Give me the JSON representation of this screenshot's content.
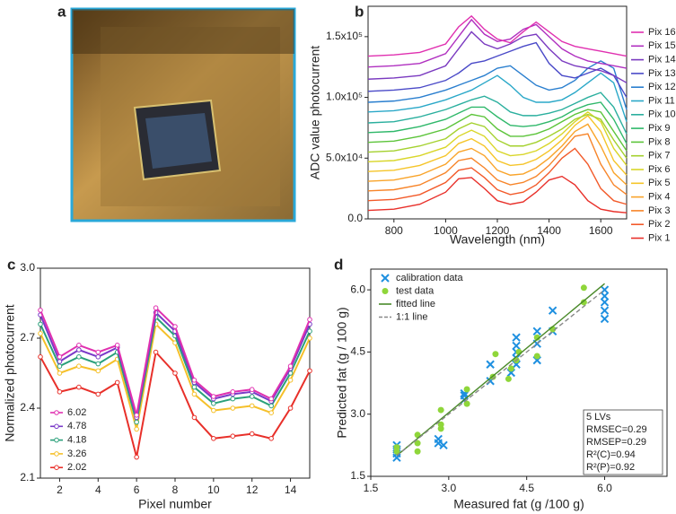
{
  "photo_panel": {
    "panel_label": "a"
  },
  "chart_data": [
    {
      "type": "line",
      "panel_label": "b",
      "x_label": "Wavelength (nm)",
      "y_label": "ADC value photocurrent",
      "xlim": [
        700,
        1700
      ],
      "xticks": [
        800,
        1000,
        1200,
        1400,
        1600
      ],
      "ylim": [
        0,
        175000
      ],
      "yticks": [
        {
          "value": 0,
          "label": "0.0"
        },
        {
          "value": 50000,
          "label": "5.0x10⁴"
        },
        {
          "value": 100000,
          "label": "1.0x10⁵"
        },
        {
          "value": 150000,
          "label": "1.5x10⁵"
        }
      ],
      "legend": "right",
      "grid": false,
      "markers": false,
      "x": [
        700,
        800,
        900,
        1000,
        1050,
        1100,
        1150,
        1200,
        1250,
        1300,
        1350,
        1400,
        1450,
        1500,
        1550,
        1600,
        1650,
        1700
      ],
      "series": [
        {
          "name": "Pix 1",
          "color": "#e8302a",
          "values": [
            7000,
            8000,
            12000,
            22000,
            33000,
            34000,
            25000,
            15000,
            12000,
            14000,
            22000,
            32000,
            35000,
            28000,
            15000,
            8000,
            6000,
            5000
          ]
        },
        {
          "name": "Pix 2",
          "color": "#f25a2a",
          "values": [
            15000,
            16000,
            20000,
            30000,
            40000,
            42000,
            34000,
            24000,
            20000,
            22000,
            28000,
            38000,
            50000,
            58000,
            45000,
            25000,
            15000,
            12000
          ]
        },
        {
          "name": "Pix 3",
          "color": "#f7852a",
          "values": [
            23000,
            24000,
            28000,
            38000,
            48000,
            50000,
            42000,
            32000,
            28000,
            30000,
            35000,
            44000,
            56000,
            68000,
            70000,
            45000,
            28000,
            20000
          ]
        },
        {
          "name": "Pix 4",
          "color": "#f9a42a",
          "values": [
            31000,
            32000,
            36000,
            45000,
            55000,
            58000,
            52000,
            40000,
            36000,
            37000,
            42000,
            50000,
            60000,
            72000,
            78000,
            60000,
            38000,
            28000
          ]
        },
        {
          "name": "Pix 5",
          "color": "#f5c52a",
          "values": [
            39000,
            40000,
            44000,
            52000,
            62000,
            66000,
            60000,
            48000,
            44000,
            45000,
            49000,
            56000,
            65000,
            77000,
            85000,
            72000,
            48000,
            36000
          ]
        },
        {
          "name": "Pix 6",
          "color": "#d9d62a",
          "values": [
            47000,
            48000,
            52000,
            59000,
            68000,
            73000,
            68000,
            56000,
            52000,
            53000,
            56000,
            62000,
            70000,
            80000,
            88000,
            80000,
            58000,
            44000
          ]
        },
        {
          "name": "Pix 7",
          "color": "#a4d12e",
          "values": [
            55000,
            56000,
            60000,
            66000,
            74000,
            79000,
            76000,
            65000,
            60000,
            60000,
            63000,
            68000,
            74000,
            82000,
            86000,
            82000,
            65000,
            50000
          ]
        },
        {
          "name": "Pix 8",
          "color": "#5cc43a",
          "values": [
            63000,
            64000,
            68000,
            74000,
            80000,
            86000,
            84000,
            74000,
            68000,
            68000,
            70000,
            74000,
            80000,
            86000,
            90000,
            88000,
            72000,
            56000
          ]
        },
        {
          "name": "Pix 9",
          "color": "#2fb86a",
          "values": [
            71000,
            72000,
            76000,
            82000,
            87000,
            92000,
            92000,
            84000,
            77000,
            76000,
            77000,
            80000,
            84000,
            90000,
            94000,
            96000,
            82000,
            62000
          ]
        },
        {
          "name": "Pix 10",
          "color": "#2aaf9e",
          "values": [
            79000,
            80000,
            84000,
            90000,
            94000,
            98000,
            101000,
            96000,
            88000,
            85000,
            85000,
            87000,
            90000,
            95000,
            100000,
            104000,
            92000,
            70000
          ]
        },
        {
          "name": "Pix 11",
          "color": "#2aa8c8",
          "values": [
            88000,
            89000,
            92000,
            98000,
            102000,
            106000,
            112000,
            118000,
            110000,
            100000,
            96000,
            96000,
            98000,
            104000,
            112000,
            120000,
            112000,
            80000
          ]
        },
        {
          "name": "Pix 12",
          "color": "#2a7fcf",
          "values": [
            96000,
            97000,
            100000,
            106000,
            110000,
            114000,
            118000,
            124000,
            126000,
            118000,
            110000,
            106000,
            108000,
            114000,
            124000,
            130000,
            124000,
            90000
          ]
        },
        {
          "name": "Pix 13",
          "color": "#4a4ac8",
          "values": [
            105000,
            106000,
            108000,
            114000,
            120000,
            128000,
            130000,
            134000,
            138000,
            142000,
            145000,
            128000,
            118000,
            116000,
            120000,
            124000,
            118000,
            100000
          ]
        },
        {
          "name": "Pix 14",
          "color": "#7a3ac0",
          "values": [
            115000,
            116000,
            118000,
            126000,
            140000,
            154000,
            144000,
            140000,
            144000,
            150000,
            152000,
            140000,
            130000,
            126000,
            124000,
            122000,
            118000,
            112000
          ]
        },
        {
          "name": "Pix 15",
          "color": "#b030c0",
          "values": [
            125000,
            126000,
            128000,
            136000,
            150000,
            164000,
            152000,
            146000,
            148000,
            156000,
            160000,
            150000,
            140000,
            134000,
            130000,
            128000,
            126000,
            124000
          ]
        },
        {
          "name": "Pix 16",
          "color": "#e030b0",
          "values": [
            134000,
            135000,
            137000,
            144000,
            158000,
            167000,
            156000,
            148000,
            145000,
            154000,
            162000,
            154000,
            146000,
            142000,
            140000,
            138000,
            136000,
            134000
          ]
        }
      ]
    },
    {
      "type": "line",
      "panel_label": "c",
      "x_label": "Pixel number",
      "y_label": "Normalized photocurrent",
      "xlim": [
        1,
        15
      ],
      "xticks": [
        2,
        4,
        6,
        8,
        10,
        12,
        14
      ],
      "ylim": [
        2.1,
        3.0
      ],
      "yticks": [
        2.1,
        2.4,
        2.7,
        {
          "value": 3,
          "label": "3.0"
        }
      ],
      "legend": "lower left",
      "grid": false,
      "markers": true,
      "x": [
        1,
        2,
        3,
        4,
        5,
        6,
        7,
        8,
        9,
        10,
        11,
        12,
        13,
        14,
        15
      ],
      "series": [
        {
          "name": "2.02",
          "color": "#e8302a",
          "values": [
            2.62,
            2.47,
            2.49,
            2.46,
            2.51,
            2.19,
            2.64,
            2.55,
            2.36,
            2.27,
            2.28,
            2.29,
            2.27,
            2.4,
            2.56
          ]
        },
        {
          "name": "3.26",
          "color": "#f5c02a",
          "values": [
            2.72,
            2.55,
            2.58,
            2.56,
            2.61,
            2.31,
            2.76,
            2.68,
            2.46,
            2.39,
            2.4,
            2.41,
            2.38,
            2.52,
            2.7
          ]
        },
        {
          "name": "4.18",
          "color": "#2aa07a",
          "values": [
            2.76,
            2.58,
            2.62,
            2.59,
            2.64,
            2.34,
            2.79,
            2.71,
            2.49,
            2.42,
            2.44,
            2.45,
            2.41,
            2.55,
            2.73
          ]
        },
        {
          "name": "4.78",
          "color": "#7a3ac8",
          "values": [
            2.8,
            2.6,
            2.65,
            2.62,
            2.66,
            2.36,
            2.81,
            2.73,
            2.51,
            2.44,
            2.46,
            2.47,
            2.43,
            2.57,
            2.76
          ]
        },
        {
          "name": "6.02",
          "color": "#e030b0",
          "values": [
            2.82,
            2.62,
            2.67,
            2.64,
            2.67,
            2.37,
            2.83,
            2.75,
            2.52,
            2.45,
            2.47,
            2.48,
            2.44,
            2.58,
            2.78
          ]
        }
      ]
    },
    {
      "type": "scatter",
      "panel_label": "d",
      "x_label": "Measured fat (g /100 g)",
      "y_label": "Predicted fat (g / 100 g)",
      "xlim": [
        1.5,
        7.2
      ],
      "xticks": [
        1.5,
        {
          "value": 3,
          "label": "3.0"
        },
        4.5,
        {
          "value": 6,
          "label": "6.0"
        }
      ],
      "ylim": [
        1.5,
        6.5
      ],
      "yticks": [
        1.5,
        {
          "value": 3,
          "label": "3.0"
        },
        4.5,
        {
          "value": 6,
          "label": "6.0"
        }
      ],
      "legend": "upper left",
      "grid": false,
      "annotations": [
        "5 LVs",
        "RMSEC=0.29",
        "RMSEP=0.29",
        "R²(C)=0.94",
        "R²(P)=0.92"
      ],
      "series": [
        {
          "name": "calibration data",
          "color": "#1e90e0",
          "marker": "x",
          "x": [
            2.0,
            2.0,
            2.0,
            2.0,
            2.8,
            2.8,
            2.9,
            3.3,
            3.3,
            3.3,
            3.8,
            3.8,
            4.2,
            4.3,
            4.3,
            4.3,
            4.3,
            4.3,
            4.7,
            4.7,
            4.7,
            5.0,
            5.0,
            6.0,
            6.0,
            6.0,
            6.0,
            6.0
          ],
          "values": [
            1.95,
            2.05,
            2.15,
            2.25,
            2.3,
            2.4,
            2.25,
            3.35,
            3.45,
            3.5,
            3.8,
            4.2,
            4.0,
            4.2,
            4.35,
            4.5,
            4.65,
            4.85,
            4.3,
            4.7,
            5.0,
            5.0,
            5.5,
            5.3,
            5.5,
            5.7,
            5.85,
            6.0
          ]
        },
        {
          "name": "test data",
          "color": "#8fd63a",
          "marker": "circle",
          "x": [
            2.0,
            2.0,
            2.4,
            2.4,
            2.4,
            2.85,
            2.85,
            2.85,
            3.35,
            3.35,
            3.85,
            3.9,
            4.15,
            4.2,
            4.3,
            4.35,
            4.7,
            4.7,
            5.0,
            5.6,
            5.6
          ],
          "values": [
            2.1,
            2.2,
            2.1,
            2.3,
            2.5,
            2.65,
            2.75,
            3.1,
            3.25,
            3.6,
            3.9,
            4.45,
            3.85,
            4.1,
            4.3,
            4.5,
            4.4,
            4.85,
            5.05,
            5.7,
            6.05
          ]
        },
        {
          "name": "fitted line",
          "color": "#4a8a2a",
          "marker": "line",
          "x": [
            2.0,
            6.0
          ],
          "values": [
            2.0,
            6.15
          ]
        },
        {
          "name": "1:1 line",
          "color": "#888888",
          "marker": "dashed",
          "x": [
            2.0,
            6.0
          ],
          "values": [
            2.0,
            6.0
          ]
        }
      ]
    }
  ]
}
